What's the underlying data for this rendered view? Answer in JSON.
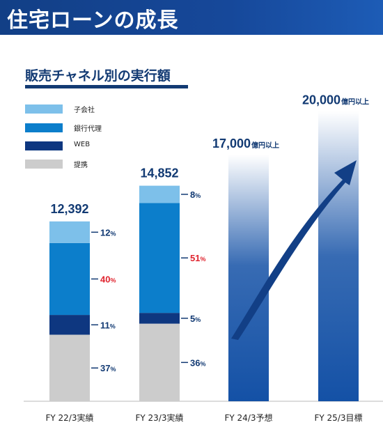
{
  "header": {
    "title": "住宅ローンの成長"
  },
  "subtitle": "販売チャネル別の実行額",
  "legend": [
    {
      "label": "子会社",
      "color": "#7dc0ea"
    },
    {
      "label": "銀行代理",
      "color": "#0c7ecb"
    },
    {
      "label": "WEB",
      "color": "#0e3780"
    },
    {
      "label": "提携",
      "color": "#cccccc"
    }
  ],
  "chart_data": {
    "type": "bar",
    "categories": [
      "FY 22/3実績",
      "FY 23/3実績",
      "FY 24/3予想",
      "FY 25/3目標"
    ],
    "series": [
      {
        "name": "提携",
        "values": [
          37,
          36,
          null,
          null
        ],
        "labels": [
          "37%",
          "36%",
          null,
          null
        ],
        "color": "#cccccc"
      },
      {
        "name": "WEB",
        "values": [
          11,
          5,
          null,
          null
        ],
        "labels": [
          "11%",
          "5%",
          null,
          null
        ],
        "color": "#0e3780"
      },
      {
        "name": "銀行代理",
        "values": [
          40,
          51,
          null,
          null
        ],
        "labels": [
          "40%",
          "51%",
          null,
          null
        ],
        "color": "#0c7ecb",
        "label_color": "#e0242f"
      },
      {
        "name": "子会社",
        "values": [
          12,
          8,
          null,
          null
        ],
        "labels": [
          "12%",
          "8%",
          null,
          null
        ],
        "color": "#7dc0ea"
      }
    ],
    "totals": [
      12392,
      14852,
      17000,
      20000
    ],
    "total_labels": [
      {
        "value": "12,392",
        "suffix": ""
      },
      {
        "value": "14,852",
        "suffix": ""
      },
      {
        "value": "17,000",
        "suffix": "億円以上"
      },
      {
        "value": "20,000",
        "suffix": "億円以上"
      }
    ],
    "units": "億円",
    "ylim": [
      0,
      24000
    ],
    "label_color": "#123a73",
    "gradient_bar_color": "#1451a6",
    "arrow_color": "#123f86"
  }
}
